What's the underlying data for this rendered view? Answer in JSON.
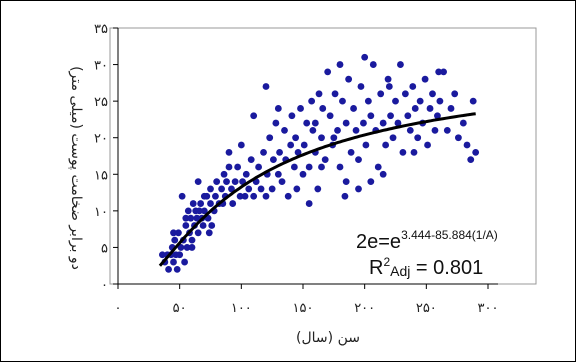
{
  "chart_data": {
    "type": "scatter",
    "title": "",
    "xlabel": "سن (سال)",
    "ylabel": "دو برابر ضخامت پوست (میلی متر)",
    "xlim": [
      0,
      300
    ],
    "ylim": [
      0,
      35
    ],
    "x_ticks": [
      0,
      50,
      100,
      150,
      200,
      250,
      300
    ],
    "y_ticks": [
      0,
      5,
      10,
      15,
      20,
      25,
      30,
      35
    ],
    "x_tick_labels": [
      "۰",
      "۵۰",
      "۱۰۰",
      "۱۵۰",
      "۲۰۰",
      "۲۵۰",
      "۳۰۰"
    ],
    "y_tick_labels": [
      "۰",
      "۵",
      "۱۰",
      "۱۵",
      "۲۰",
      "۲۵",
      "۳۰",
      "۳۵"
    ],
    "grid": false,
    "marker_color": "#1a1a9e",
    "curve_color": "#000000",
    "series": [
      {
        "values": [
          [
            36,
            4
          ],
          [
            38,
            3
          ],
          [
            40,
            4
          ],
          [
            41,
            2
          ],
          [
            43,
            4
          ],
          [
            44,
            5
          ],
          [
            45,
            3
          ],
          [
            46,
            6
          ],
          [
            47,
            4
          ],
          [
            48,
            2
          ],
          [
            49,
            7
          ],
          [
            50,
            4
          ],
          [
            51,
            5
          ],
          [
            52,
            12
          ],
          [
            53,
            6
          ],
          [
            54,
            3
          ],
          [
            55,
            8
          ],
          [
            56,
            5
          ],
          [
            57,
            10
          ],
          [
            58,
            7
          ],
          [
            59,
            9
          ],
          [
            60,
            6
          ],
          [
            61,
            11
          ],
          [
            62,
            8
          ],
          [
            63,
            10
          ],
          [
            64,
            9
          ],
          [
            65,
            7
          ],
          [
            66,
            10
          ],
          [
            67,
            11
          ],
          [
            68,
            9
          ],
          [
            69,
            8
          ],
          [
            70,
            10
          ],
          [
            72,
            12
          ],
          [
            73,
            9
          ],
          [
            74,
            7
          ],
          [
            75,
            11
          ],
          [
            76,
            8
          ],
          [
            78,
            10
          ],
          [
            79,
            12
          ],
          [
            80,
            14
          ],
          [
            82,
            11
          ],
          [
            84,
            13
          ],
          [
            86,
            15
          ],
          [
            87,
            12
          ],
          [
            88,
            14
          ],
          [
            90,
            16
          ],
          [
            92,
            13
          ],
          [
            93,
            11
          ],
          [
            95,
            14
          ],
          [
            97,
            16
          ],
          [
            99,
            12
          ],
          [
            101,
            14
          ],
          [
            103,
            12
          ],
          [
            104,
            15
          ],
          [
            106,
            13
          ],
          [
            108,
            17
          ],
          [
            110,
            12
          ],
          [
            112,
            14
          ],
          [
            114,
            16
          ],
          [
            116,
            13
          ],
          [
            118,
            18
          ],
          [
            120,
            12
          ],
          [
            121,
            15
          ],
          [
            123,
            20
          ],
          [
            125,
            13
          ],
          [
            126,
            17
          ],
          [
            128,
            22
          ],
          [
            130,
            15
          ],
          [
            131,
            18
          ],
          [
            133,
            14
          ],
          [
            135,
            21
          ],
          [
            136,
            17
          ],
          [
            138,
            12
          ],
          [
            140,
            19
          ],
          [
            141,
            23
          ],
          [
            143,
            16
          ],
          [
            144,
            20
          ],
          [
            146,
            18
          ],
          [
            148,
            24
          ],
          [
            150,
            15
          ],
          [
            151,
            19
          ],
          [
            153,
            22
          ],
          [
            155,
            11
          ],
          [
            157,
            25
          ],
          [
            158,
            21
          ],
          [
            160,
            18
          ],
          [
            162,
            13
          ],
          [
            163,
            26
          ],
          [
            165,
            20
          ],
          [
            166,
            24
          ],
          [
            168,
            17
          ],
          [
            170,
            29
          ],
          [
            172,
            23
          ],
          [
            174,
            19
          ],
          [
            176,
            26
          ],
          [
            178,
            21
          ],
          [
            180,
            16
          ],
          [
            182,
            25
          ],
          [
            184,
            12
          ],
          [
            185,
            22
          ],
          [
            187,
            28
          ],
          [
            189,
            18
          ],
          [
            191,
            24
          ],
          [
            193,
            21
          ],
          [
            195,
            17
          ],
          [
            197,
            27
          ],
          [
            199,
            22
          ],
          [
            201,
            19
          ],
          [
            203,
            25
          ],
          [
            205,
            23
          ],
          [
            207,
            30
          ],
          [
            209,
            21
          ],
          [
            211,
            16
          ],
          [
            213,
            26
          ],
          [
            215,
            22
          ],
          [
            217,
            19
          ],
          [
            219,
            28
          ],
          [
            221,
            23
          ],
          [
            223,
            20
          ],
          [
            225,
            25
          ],
          [
            227,
            22
          ],
          [
            229,
            30
          ],
          [
            231,
            18
          ],
          [
            233,
            26
          ],
          [
            235,
            23
          ],
          [
            237,
            21
          ],
          [
            239,
            27
          ],
          [
            241,
            24
          ],
          [
            243,
            20
          ],
          [
            245,
            25
          ],
          [
            247,
            22
          ],
          [
            249,
            28
          ],
          [
            251,
            19
          ],
          [
            253,
            24
          ],
          [
            255,
            26
          ],
          [
            257,
            21
          ],
          [
            259,
            23
          ],
          [
            261,
            25
          ],
          [
            264,
            29
          ],
          [
            267,
            21
          ],
          [
            270,
            24
          ],
          [
            273,
            26
          ],
          [
            276,
            20
          ],
          [
            280,
            22
          ],
          [
            283,
            19
          ],
          [
            286,
            17
          ],
          [
            288,
            25
          ],
          [
            290,
            18
          ],
          [
            195,
            13
          ],
          [
            215,
            15
          ],
          [
            240,
            18
          ],
          [
            160,
            22
          ],
          [
            130,
            24
          ],
          [
            120,
            27
          ],
          [
            110,
            23
          ],
          [
            180,
            30
          ],
          [
            200,
            31
          ],
          [
            220,
            27
          ],
          [
            260,
            29
          ],
          [
            175,
            20
          ],
          [
            145,
            13
          ],
          [
            155,
            16
          ],
          [
            185,
            14
          ],
          [
            205,
            14
          ],
          [
            165,
            16
          ],
          [
            100,
            19
          ],
          [
            90,
            18
          ],
          [
            85,
            11
          ],
          [
            75,
            13
          ],
          [
            65,
            14
          ],
          [
            55,
            9
          ],
          [
            70,
            12
          ],
          [
            60,
            5
          ],
          [
            45,
            7
          ]
        ]
      }
    ],
    "fit_curve": {
      "a": 3.444,
      "b": 85.884,
      "x_from": 34,
      "x_to": 290
    }
  },
  "annotations": {
    "equation_base": "2e=e",
    "equation_exponent": "3.444-85.884(1/A)",
    "r2_prefix": "R",
    "r2_sup": "2",
    "r2_sub": "Adj",
    "r2_value": " = 0.801"
  }
}
